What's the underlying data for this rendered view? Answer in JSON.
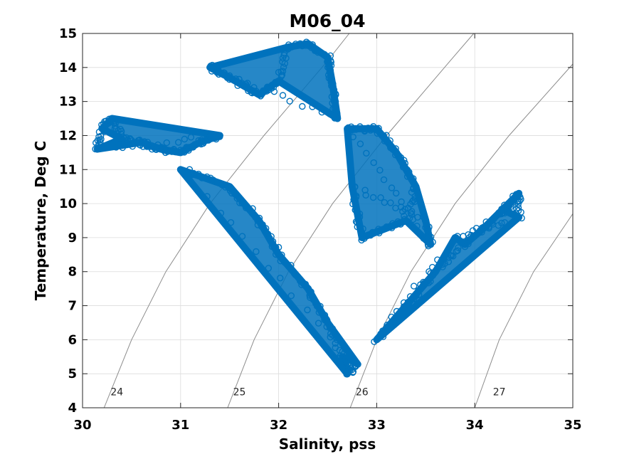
{
  "chart_data": {
    "type": "scatter",
    "title": "M06_04",
    "xlabel": "Salinity, pss",
    "ylabel": "Temperature, Deg C",
    "xlim": [
      30,
      35
    ],
    "ylim": [
      4,
      15
    ],
    "xticks": [
      "30",
      "31",
      "32",
      "33",
      "34",
      "35"
    ],
    "yticks": [
      "4",
      "5",
      "6",
      "7",
      "8",
      "9",
      "10",
      "11",
      "12",
      "13",
      "14",
      "15"
    ],
    "grid": true,
    "marker": "open-circle",
    "series_color": "#0072BD",
    "density_contours": [
      {
        "label": "24",
        "label_at": [
          30.35,
          4.3
        ],
        "points": [
          [
            30.22,
            4.0
          ],
          [
            30.5,
            6.0
          ],
          [
            30.85,
            8.0
          ],
          [
            31.3,
            10.0
          ],
          [
            31.85,
            12.0
          ],
          [
            32.5,
            14.2
          ],
          [
            32.72,
            15.0
          ]
        ]
      },
      {
        "label": "25",
        "label_at": [
          31.6,
          4.3
        ],
        "points": [
          [
            31.48,
            4.0
          ],
          [
            31.75,
            6.0
          ],
          [
            32.1,
            8.0
          ],
          [
            32.55,
            10.0
          ],
          [
            33.1,
            12.0
          ],
          [
            33.75,
            14.2
          ],
          [
            33.99,
            15.0
          ]
        ]
      },
      {
        "label": "26",
        "label_at": [
          32.85,
          4.3
        ],
        "points": [
          [
            32.73,
            4.0
          ],
          [
            33.0,
            6.0
          ],
          [
            33.35,
            8.0
          ],
          [
            33.8,
            10.0
          ],
          [
            34.35,
            12.0
          ],
          [
            35.0,
            14.1
          ]
        ]
      },
      {
        "label": "27",
        "label_at": [
          34.25,
          4.3
        ],
        "points": [
          [
            34.0,
            4.0
          ],
          [
            34.25,
            6.0
          ],
          [
            34.6,
            8.0
          ],
          [
            35.0,
            9.7
          ]
        ]
      }
    ],
    "point_clusters": [
      {
        "region": "upper-left plume",
        "points": [
          [
            30.15,
            11.6
          ],
          [
            30.2,
            12.2
          ],
          [
            30.3,
            12.5
          ],
          [
            30.4,
            11.9
          ],
          [
            30.6,
            11.8
          ],
          [
            30.8,
            11.6
          ],
          [
            31.0,
            11.5
          ],
          [
            31.2,
            11.8
          ],
          [
            31.4,
            12.0
          ]
        ]
      },
      {
        "region": "warm core",
        "points": [
          [
            31.3,
            14.0
          ],
          [
            31.5,
            13.7
          ],
          [
            31.8,
            13.2
          ],
          [
            32.0,
            13.6
          ],
          [
            32.1,
            14.6
          ],
          [
            32.3,
            14.7
          ],
          [
            32.5,
            14.3
          ],
          [
            32.55,
            13.5
          ],
          [
            32.6,
            12.5
          ]
        ]
      },
      {
        "region": "central body",
        "points": [
          [
            31.0,
            11.0
          ],
          [
            31.5,
            10.5
          ],
          [
            31.8,
            9.5
          ],
          [
            32.0,
            8.5
          ],
          [
            32.3,
            7.5
          ],
          [
            32.5,
            6.5
          ],
          [
            32.65,
            5.5
          ],
          [
            32.7,
            5.0
          ],
          [
            32.8,
            5.3
          ]
        ]
      },
      {
        "region": "loops",
        "points": [
          [
            32.7,
            12.2
          ],
          [
            33.0,
            12.2
          ],
          [
            33.2,
            11.5
          ],
          [
            33.4,
            10.5
          ],
          [
            33.3,
            9.5
          ],
          [
            32.85,
            9.0
          ],
          [
            32.75,
            10.5
          ],
          [
            33.5,
            9.5
          ],
          [
            33.55,
            8.8
          ]
        ]
      },
      {
        "region": "right wing",
        "points": [
          [
            33.0,
            6.0
          ],
          [
            33.3,
            7.0
          ],
          [
            33.6,
            8.0
          ],
          [
            33.9,
            8.8
          ],
          [
            34.1,
            9.3
          ],
          [
            34.3,
            9.8
          ],
          [
            34.45,
            10.3
          ],
          [
            34.45,
            9.6
          ],
          [
            33.8,
            9.0
          ]
        ]
      }
    ]
  }
}
